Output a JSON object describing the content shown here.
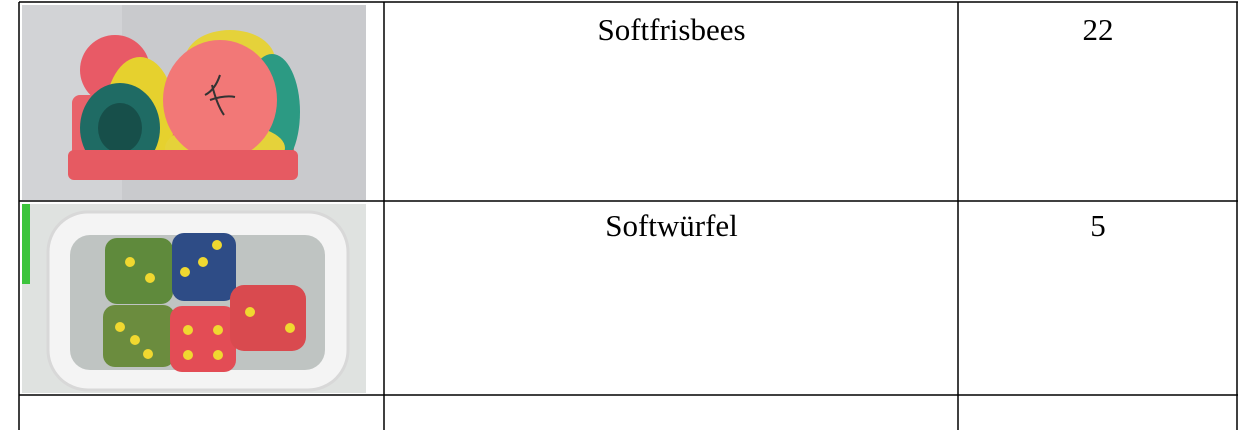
{
  "table": {
    "rows": [
      {
        "item": "Softfrisbees",
        "count": 22
      },
      {
        "item": "Softwürfel",
        "count": 5
      }
    ]
  }
}
